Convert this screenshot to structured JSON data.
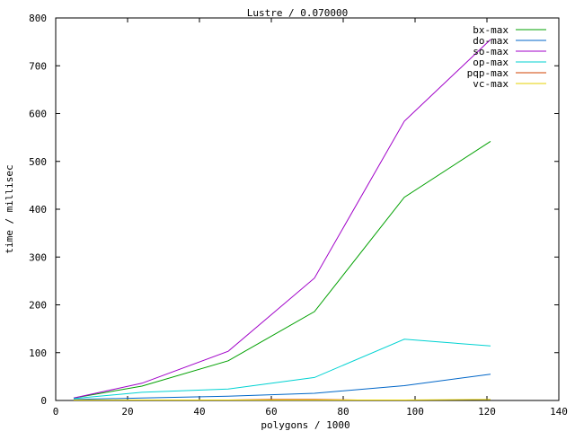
{
  "chart_data": {
    "type": "line",
    "title": "Lustre / 0.070000",
    "xlabel": "polygons / 1000",
    "ylabel": "time / millisec",
    "xlim": [
      0,
      140
    ],
    "ylim": [
      0,
      800
    ],
    "xticks": [
      0,
      20,
      40,
      60,
      80,
      100,
      120,
      140
    ],
    "yticks": [
      0,
      100,
      200,
      300,
      400,
      500,
      600,
      700,
      800
    ],
    "grid": false,
    "legend_position": "top-right",
    "series": [
      {
        "name": "bx-max",
        "color": "#00a000",
        "points": [
          [
            5,
            5
          ],
          [
            24,
            30
          ],
          [
            48,
            83
          ],
          [
            72,
            186
          ],
          [
            97,
            425
          ],
          [
            121,
            542
          ]
        ]
      },
      {
        "name": "do-max",
        "color": "#0066c8",
        "points": [
          [
            5,
            2
          ],
          [
            24,
            5
          ],
          [
            48,
            9
          ],
          [
            72,
            15
          ],
          [
            97,
            31
          ],
          [
            121,
            55
          ]
        ]
      },
      {
        "name": "so-max",
        "color": "#a000c8",
        "points": [
          [
            5,
            5
          ],
          [
            24,
            36
          ],
          [
            48,
            103
          ],
          [
            72,
            256
          ],
          [
            97,
            584
          ],
          [
            121,
            755
          ]
        ]
      },
      {
        "name": "op-max",
        "color": "#00d2d2",
        "points": [
          [
            5,
            4
          ],
          [
            24,
            17
          ],
          [
            48,
            24
          ],
          [
            72,
            48
          ],
          [
            97,
            128
          ],
          [
            121,
            114
          ]
        ]
      },
      {
        "name": "pqp-max",
        "color": "#d24000",
        "points": [
          [
            5,
            1
          ],
          [
            24,
            1
          ],
          [
            48,
            1
          ],
          [
            60,
            2
          ],
          [
            72,
            2
          ],
          [
            84,
            1
          ]
        ]
      },
      {
        "name": "vc-max",
        "color": "#e6d200",
        "points": [
          [
            5,
            1
          ],
          [
            24,
            1
          ],
          [
            48,
            1
          ],
          [
            72,
            1
          ],
          [
            97,
            1
          ],
          [
            121,
            2
          ]
        ]
      }
    ]
  }
}
